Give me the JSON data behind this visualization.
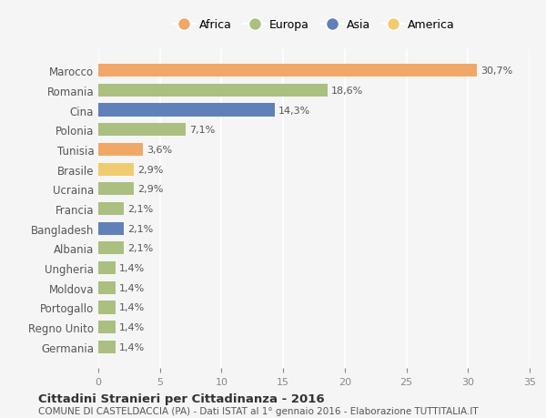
{
  "countries": [
    "Marocco",
    "Romania",
    "Cina",
    "Polonia",
    "Tunisia",
    "Brasile",
    "Ucraina",
    "Francia",
    "Bangladesh",
    "Albania",
    "Ungheria",
    "Moldova",
    "Portogallo",
    "Regno Unito",
    "Germania"
  ],
  "values": [
    30.7,
    18.6,
    14.3,
    7.1,
    3.6,
    2.9,
    2.9,
    2.1,
    2.1,
    2.1,
    1.4,
    1.4,
    1.4,
    1.4,
    1.4
  ],
  "labels": [
    "30,7%",
    "18,6%",
    "14,3%",
    "7,1%",
    "3,6%",
    "2,9%",
    "2,9%",
    "2,1%",
    "2,1%",
    "2,1%",
    "1,4%",
    "1,4%",
    "1,4%",
    "1,4%",
    "1,4%"
  ],
  "continents": [
    "Africa",
    "Europa",
    "Asia",
    "Europa",
    "Africa",
    "America",
    "Europa",
    "Europa",
    "Asia",
    "Europa",
    "Europa",
    "Europa",
    "Europa",
    "Europa",
    "Europa"
  ],
  "colors": {
    "Africa": "#F0A868",
    "Europa": "#AABF80",
    "Asia": "#6080B8",
    "America": "#F0CC70"
  },
  "legend_order": [
    "Africa",
    "Europa",
    "Asia",
    "America"
  ],
  "xlim": [
    0,
    35
  ],
  "xticks": [
    0,
    5,
    10,
    15,
    20,
    25,
    30,
    35
  ],
  "title": "Cittadini Stranieri per Cittadinanza - 2016",
  "subtitle": "COMUNE DI CASTELDACCIA (PA) - Dati ISTAT al 1° gennaio 2016 - Elaborazione TUTTITALIA.IT",
  "bg_color": "#f5f5f5",
  "grid_color": "#ffffff",
  "bar_height": 0.65
}
